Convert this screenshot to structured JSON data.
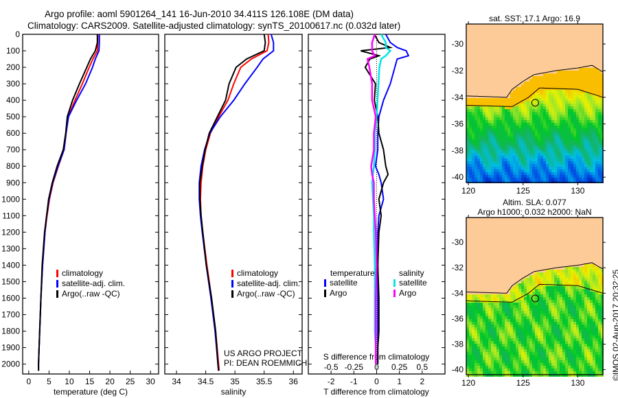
{
  "chart_data": [
    {
      "type": "line",
      "title": "Argo profile: aoml 5901264_141 16-Jun-2010 34.411S 126.108E (DM data)",
      "subtitle": "Climatology: CARS2009. Satellite-adjusted climatology: synTS_20100617.nc (0.032d later)",
      "xlabel": "temperature (deg C)",
      "xlim": [
        -1.5,
        32
      ],
      "ylim": [
        2060,
        0
      ],
      "xticks": [
        "0",
        "5",
        "10",
        "15",
        "20",
        "25",
        "30"
      ],
      "yticks": [
        "0",
        "100",
        "200",
        "300",
        "400",
        "500",
        "600",
        "700",
        "800",
        "900",
        "1000",
        "1100",
        "1200",
        "1300",
        "1400",
        "1500",
        "1600",
        "1700",
        "1800",
        "1900",
        "2000"
      ],
      "legend": [
        "climatology",
        "satellite-adj. clim.",
        "Argo(..raw -QC)"
      ],
      "depth": [
        0,
        50,
        100,
        150,
        200,
        300,
        400,
        500,
        600,
        700,
        800,
        900,
        1000,
        1100,
        1200,
        1400,
        1600,
        1800,
        2000,
        2040
      ],
      "series": [
        {
          "name": "climatology",
          "color": "#ff0000",
          "values": [
            17.0,
            17.0,
            16.9,
            15.8,
            14.9,
            13.2,
            11.4,
            9.7,
            9.2,
            8.7,
            7.3,
            6.0,
            5.1,
            4.5,
            4.0,
            3.4,
            3.0,
            2.7,
            2.4,
            2.4
          ]
        },
        {
          "name": "satellite-adj. clim.",
          "color": "#0000ff",
          "values": [
            17.4,
            17.4,
            17.3,
            16.4,
            15.7,
            14.0,
            11.8,
            9.8,
            9.2,
            8.7,
            7.2,
            5.9,
            5.0,
            4.4,
            4.0,
            3.4,
            3.0,
            2.7,
            2.4,
            2.4
          ]
        },
        {
          "name": "Argo(..raw -QC)",
          "color": "#000000",
          "values": [
            16.9,
            16.9,
            16.4,
            15.2,
            14.3,
            12.5,
            10.8,
            9.5,
            9.1,
            8.5,
            7.0,
            5.8,
            4.9,
            4.4,
            3.9,
            3.3,
            3.0,
            2.7,
            2.4,
            2.4
          ]
        }
      ]
    },
    {
      "type": "line",
      "xlabel": "salinity",
      "xlim": [
        33.8,
        36.15
      ],
      "ylim": [
        2060,
        0
      ],
      "xticks": [
        "34",
        "34.5",
        "35",
        "35.5",
        "36"
      ],
      "legend": [
        "climatology",
        "satellite-adj. clim.",
        "Argo(..raw -QC)"
      ],
      "annotation": [
        "US ARGO PROJECT",
        "PI: DEAN ROEMMICH"
      ],
      "depth": [
        0,
        50,
        100,
        150,
        200,
        300,
        400,
        500,
        600,
        700,
        800,
        900,
        1000,
        1100,
        1200,
        1400,
        1600,
        1800,
        2000,
        2040
      ],
      "series": [
        {
          "name": "climatology",
          "color": "#ff0000",
          "values": [
            35.57,
            35.58,
            35.55,
            35.28,
            35.1,
            34.98,
            34.88,
            34.72,
            34.58,
            34.5,
            34.45,
            34.42,
            34.41,
            34.42,
            34.45,
            34.52,
            34.6,
            34.67,
            34.72,
            34.73
          ]
        },
        {
          "name": "satellite-adj. clim.",
          "color": "#0000ff",
          "values": [
            35.62,
            35.66,
            35.66,
            35.48,
            35.38,
            35.17,
            34.98,
            34.75,
            34.57,
            34.48,
            34.42,
            34.39,
            34.39,
            34.41,
            34.44,
            34.51,
            34.59,
            34.66,
            34.71,
            34.72
          ]
        },
        {
          "name": "Argo(..raw -QC)",
          "color": "#000000",
          "values": [
            35.5,
            35.52,
            35.5,
            35.2,
            35.02,
            34.9,
            34.84,
            34.7,
            34.56,
            34.49,
            34.44,
            34.4,
            34.4,
            34.42,
            34.45,
            34.51,
            34.6,
            34.67,
            34.71,
            34.72
          ]
        }
      ]
    },
    {
      "type": "line",
      "xlabel": "T difference from climatology",
      "x2label": "S difference from climatology",
      "xlim": [
        -3,
        3
      ],
      "x2lim": [
        -0.75,
        0.75
      ],
      "ylim": [
        2060,
        0
      ],
      "xticks": [
        "-2",
        "-1",
        "0",
        "1",
        "2"
      ],
      "x2ticks": [
        "-0.5",
        "-0.25",
        "0",
        "0.25",
        "0.5"
      ],
      "legend_titles": [
        "temperature",
        "salinity"
      ],
      "legend": [
        "satellite",
        "Argo",
        "satellite",
        "Argo"
      ],
      "depth": [
        0,
        50,
        80,
        100,
        130,
        150,
        200,
        300,
        400,
        500,
        600,
        700,
        800,
        850,
        900,
        1000,
        1100,
        1200,
        1400,
        1600,
        1800,
        1900,
        2000
      ],
      "series": [
        {
          "name": "T satellite",
          "axis": "T",
          "color": "#0000ff",
          "values": [
            0.4,
            0.6,
            0.9,
            1.3,
            1.4,
            0.9,
            0.8,
            0.6,
            0.3,
            0.1,
            0.05,
            0.05,
            -0.05,
            0.1,
            0.2,
            0.3,
            0.1,
            0.05,
            0.05,
            0.05,
            0.05,
            0.05,
            0.05
          ]
        },
        {
          "name": "T Argo",
          "axis": "T",
          "color": "#000000",
          "values": [
            -0.1,
            0.1,
            0.6,
            -0.7,
            0.1,
            -0.3,
            -0.5,
            -0.05,
            -0.1,
            0.05,
            0.1,
            0.3,
            0.4,
            0.5,
            0.3,
            0.1,
            0.2,
            0.1,
            0.05,
            0.1,
            0.1,
            0.05,
            0.05
          ]
        },
        {
          "name": "S satellite",
          "axis": "S",
          "color": "#00e5e5",
          "values": [
            0.05,
            0.1,
            0.1,
            0.15,
            0.1,
            0.05,
            0.03,
            0.02,
            0.01,
            0.0,
            -0.02,
            -0.02,
            -0.03,
            -0.04,
            -0.05,
            -0.04,
            -0.03,
            -0.03,
            -0.02,
            -0.02,
            -0.02,
            -0.01,
            -0.01
          ]
        },
        {
          "name": "S Argo",
          "axis": "S",
          "color": "#ff00ff",
          "values": [
            -0.02,
            -0.05,
            -0.05,
            -0.05,
            -0.02,
            -0.1,
            -0.08,
            -0.05,
            -0.05,
            -0.01,
            -0.03,
            -0.03,
            -0.06,
            -0.05,
            -0.03,
            -0.03,
            -0.02,
            -0.01,
            0.0,
            -0.01,
            -0.01,
            -0.01,
            -0.01
          ]
        }
      ]
    },
    {
      "type": "heatmap",
      "title": "sat. SST: 17.1 Argo: 16.9",
      "xlim": [
        119.8,
        132.3
      ],
      "ylim": [
        -40.4,
        -28.5
      ],
      "xticks": [
        "120",
        "125",
        "130"
      ],
      "yticks": [
        "-30",
        "-32",
        "-34",
        "-36",
        "-38",
        "-40"
      ],
      "marker": [
        126.108,
        -34.411
      ]
    },
    {
      "type": "heatmap",
      "title": [
        "Altim. SLA: 0.077",
        "Argo h1000: 0.032 h2000: NaN"
      ],
      "xlim": [
        119.8,
        132.3
      ],
      "ylim": [
        -40.4,
        -28.5
      ],
      "xticks": [
        "120",
        "125",
        "130"
      ],
      "yticks": [
        "-30",
        "-32",
        "-34",
        "-36",
        "-38",
        "-40"
      ],
      "marker": [
        126.108,
        -34.411
      ]
    }
  ],
  "credit": "©IMOS 02-Aug-2017 20:32:25",
  "colors": {
    "land": "#fccb98"
  }
}
